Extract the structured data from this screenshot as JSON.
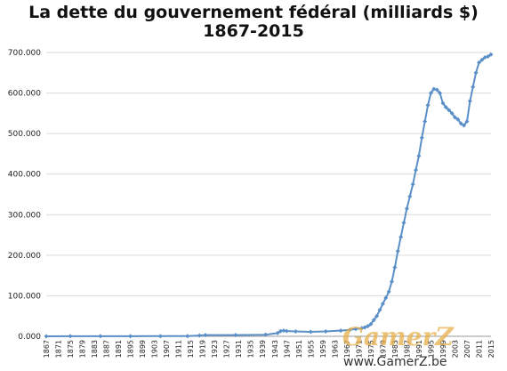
{
  "chart_data": {
    "type": "line",
    "title": "La dette du gouvernement fédéral (milliards $)",
    "subtitle": "1867-2015",
    "xlabel": "",
    "ylabel": "",
    "ylim": [
      0,
      700
    ],
    "xlim": [
      1867,
      2015
    ],
    "grid": "horizontal",
    "y_tick_labels": [
      "0.000",
      "100.000",
      "200.000",
      "300.000",
      "400.000",
      "500.000",
      "600.000",
      "700.000"
    ],
    "x_tick_labels": [
      "1867",
      "1871",
      "1875",
      "1879",
      "1883",
      "1887",
      "1891",
      "1895",
      "1899",
      "1903",
      "1907",
      "1911",
      "1915",
      "1919",
      "1923",
      "1927",
      "1931",
      "1935",
      "1939",
      "1943",
      "1947",
      "1951",
      "1955",
      "1959",
      "1963",
      "1967",
      "1971",
      "1975",
      "1979",
      "1983",
      "1987",
      "1991",
      "1995",
      "1999",
      "2003",
      "2007",
      "2011",
      "2015"
    ],
    "series": [
      {
        "color": "#5b8fc7",
        "x": [
          1867,
          1875,
          1885,
          1895,
          1905,
          1914,
          1918,
          1920,
          1930,
          1940,
          1944,
          1945,
          1946,
          1947,
          1950,
          1955,
          1960,
          1965,
          1968,
          1970,
          1972,
          1973,
          1974,
          1975,
          1976,
          1977,
          1978,
          1979,
          1980,
          1981,
          1982,
          1983,
          1984,
          1985,
          1986,
          1987,
          1988,
          1989,
          1990,
          1991,
          1992,
          1993,
          1994,
          1995,
          1996,
          1997,
          1998,
          1999,
          2000,
          2001,
          2002,
          2003,
          2004,
          2005,
          2006,
          2007,
          2008,
          2009,
          2010,
          2011,
          2012,
          2013,
          2014,
          2015
        ],
        "values": [
          0.1,
          0.2,
          0.3,
          0.3,
          0.4,
          0.5,
          2,
          3,
          3,
          4,
          8,
          13,
          14,
          13,
          12,
          11,
          12,
          14,
          16,
          18,
          20,
          22,
          25,
          30,
          40,
          50,
          65,
          80,
          95,
          110,
          135,
          170,
          210,
          245,
          280,
          315,
          345,
          375,
          410,
          445,
          490,
          530,
          570,
          600,
          610,
          608,
          600,
          575,
          565,
          558,
          550,
          540,
          535,
          525,
          520,
          530,
          580,
          615,
          650,
          675,
          682,
          688,
          690,
          695
        ]
      }
    ]
  },
  "watermark": {
    "brand": "GamerZ",
    "url": "www.GamerZ.be"
  }
}
